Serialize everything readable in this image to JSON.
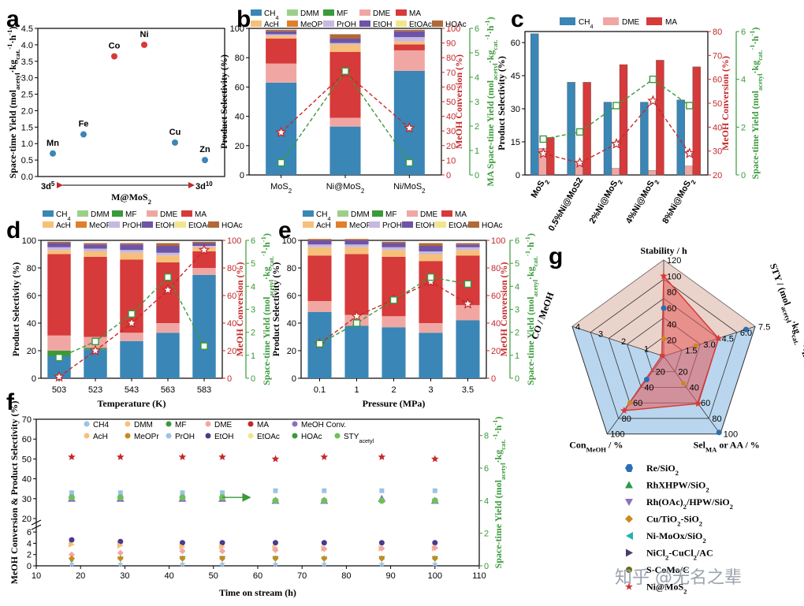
{
  "colors": {
    "CH4": "#3a86b6",
    "DMM": "#9cd08a",
    "MF": "#3a9a3a",
    "DME": "#f0a7a3",
    "MA": "#d63a3a",
    "AcH": "#f6c07a",
    "MeOPr": "#e07f2a",
    "PrOH": "#c7b8e2",
    "EtOH": "#6e54a6",
    "EtOAc": "#f2e68a",
    "HOAc": "#b06a3a",
    "conv": "#c4282a",
    "sty": "#3a9a3a"
  },
  "watermark": "知乎 @无名之辈",
  "chart_data": [
    {
      "id": "a",
      "panel_label": "a",
      "type": "scatter",
      "ylabel": "Space-time Yield (mol_acetyl·kg_cat.^-1·h^-1)",
      "xlabel": "M@MoS2",
      "x_left": "3d5",
      "x_right": "3d10",
      "ylim": [
        0,
        4.5
      ],
      "yticks": [
        "0.0",
        "0.5",
        "1.0",
        "1.5",
        "2.0",
        "2.5",
        "3.0",
        "3.5",
        "4.0",
        "4.5"
      ],
      "points": [
        {
          "label": "Mn",
          "y": 0.7,
          "color": "#3a86b6"
        },
        {
          "label": "Fe",
          "y": 1.28,
          "color": "#3a86b6"
        },
        {
          "label": "Co",
          "y": 3.65,
          "color": "#d63a3a"
        },
        {
          "label": "Ni",
          "y": 4.0,
          "color": "#d63a3a"
        },
        {
          "label": "Cu",
          "y": 1.03,
          "color": "#3a86b6"
        },
        {
          "label": "Zn",
          "y": 0.5,
          "color": "#3a86b6"
        }
      ]
    },
    {
      "id": "b",
      "panel_label": "b",
      "type": "bar",
      "ylabel": "Product Selectivity (%)",
      "y2label": "MeOH Conversion (%)",
      "y3label": "MA Space-time Yield (mol_acetyl·kg_cat.^-1·h^-1)",
      "categories": [
        "MoS2",
        "Ni@MoS2",
        "Ni/MoS2"
      ],
      "legend": [
        "CH4",
        "DMM",
        "MF",
        "DME",
        "MA",
        "AcH",
        "MeOPr",
        "PrOH",
        "EtOH",
        "EtOAc",
        "HOAc"
      ],
      "stacks": {
        "CH4": [
          63,
          33,
          71
        ],
        "DME": [
          13,
          6,
          14
        ],
        "MA": [
          17,
          45,
          4
        ],
        "AcH": [
          2,
          5,
          2
        ],
        "PrOH": [
          1,
          1,
          3
        ],
        "EtOH": [
          2,
          3,
          4
        ],
        "HOAc": [
          1,
          3,
          1
        ]
      },
      "conversion": [
        29,
        70,
        32
      ],
      "sty": [
        0.5,
        4.25,
        0.5
      ],
      "ylim": [
        0,
        100
      ],
      "yticks": [
        "0",
        "20",
        "40",
        "60",
        "80",
        "100"
      ],
      "y2ticks": [
        "0",
        "10",
        "20",
        "30",
        "40",
        "50",
        "60",
        "70",
        "80",
        "90",
        "100"
      ],
      "y3ticks": [
        "0",
        "1",
        "2",
        "3",
        "4",
        "5",
        "6"
      ]
    },
    {
      "id": "c",
      "panel_label": "c",
      "type": "bar",
      "ylabel": "Product Selectivity (%)",
      "y2label": "MeOH Conversion (%)",
      "y3label": "Space-time Yield (mol_acetyl·kg_cat.^-1·h^-1)",
      "categories": [
        "MoS2",
        "0.5%Ni@MoS2",
        "2%Ni@MoS2",
        "4%Ni@MoS2",
        "8%Ni@MoS2"
      ],
      "legend": [
        "CH4",
        "DME",
        "MA"
      ],
      "series": [
        {
          "name": "CH4",
          "values": [
            64,
            42,
            33,
            33,
            34
          ]
        },
        {
          "name": "DME",
          "values": [
            12,
            5,
            3,
            2,
            4
          ]
        },
        {
          "name": "MA",
          "values": [
            17,
            42,
            50,
            52,
            49
          ]
        }
      ],
      "conversion": [
        29,
        25,
        33,
        51,
        29
      ],
      "sty": [
        1.5,
        1.8,
        2.9,
        4.0,
        2.9
      ],
      "ylim": [
        0,
        65
      ],
      "yticks": [
        "0",
        "15",
        "30",
        "45",
        "60"
      ],
      "y2ticks": [
        "20",
        "30",
        "40",
        "50",
        "60",
        "70",
        "80"
      ],
      "y3ticks": [
        "0",
        "2",
        "4",
        "6"
      ]
    },
    {
      "id": "d",
      "panel_label": "d",
      "type": "bar",
      "xlabel": "Temperature (K)",
      "ylabel": "Product Selectivity (%)",
      "y2label": "MeOH Conversion (%)",
      "y3label": "Space-time Yield (mol_acetyl·kg_cat.^-1·h^-1)",
      "categories": [
        "503",
        "523",
        "543",
        "563",
        "583"
      ],
      "legend": [
        "CH4",
        "DMM",
        "MF",
        "DME",
        "MA",
        "AcH",
        "MeOPr",
        "PrOH",
        "EtOH",
        "EtOAc",
        "HOAc"
      ],
      "stacks": {
        "CH4": [
          16,
          21,
          27,
          33,
          75
        ],
        "MF": [
          4,
          1,
          0,
          0,
          0
        ],
        "DME": [
          11,
          8,
          6,
          7,
          5
        ],
        "MA": [
          59,
          58,
          53,
          44,
          12
        ],
        "AcH": [
          3,
          4,
          5,
          5,
          3
        ],
        "PrOH": [
          2,
          2,
          2,
          2,
          1
        ],
        "EtOH": [
          3,
          3,
          4,
          5,
          2
        ],
        "HOAc": [
          1,
          1,
          1,
          2,
          1
        ]
      },
      "conversion": [
        1,
        20,
        40,
        64,
        93
      ],
      "sty": [
        0.9,
        1.6,
        2.8,
        4.4,
        1.4
      ],
      "ylim": [
        0,
        100
      ],
      "yticks": [
        "0",
        "20",
        "40",
        "60",
        "80",
        "100"
      ],
      "y2ticks": [
        "0",
        "20",
        "40",
        "60",
        "80",
        "100"
      ],
      "y3ticks": [
        "0",
        "1",
        "2",
        "3",
        "4",
        "5",
        "6"
      ]
    },
    {
      "id": "e",
      "panel_label": "e",
      "type": "bar",
      "xlabel": "Pressure (MPa)",
      "ylabel": "Product Selectivity (%)",
      "y2label": "MeOH Conversion (%)",
      "y3label": "Space-time Yield (mol_acetyl·kg_cat.^-1·h^-1)",
      "categories": [
        "0.1",
        "1",
        "2",
        "3",
        "3.5"
      ],
      "legend": [
        "CH4",
        "DMM",
        "MF",
        "DME",
        "MA",
        "AcH",
        "MeOPr",
        "PrOH",
        "EtOH",
        "EtOAc",
        "HOAc"
      ],
      "stacks": {
        "CH4": [
          48,
          38,
          37,
          33,
          42
        ],
        "DME": [
          8,
          8,
          8,
          7,
          11
        ],
        "MA": [
          33,
          44,
          43,
          45,
          36
        ],
        "AcH": [
          6,
          5,
          5,
          5,
          4
        ],
        "PrOH": [
          2,
          2,
          2,
          2,
          2
        ],
        "EtOH": [
          3,
          3,
          3,
          4,
          2
        ],
        "HOAc": [
          1,
          1,
          1,
          2,
          1
        ]
      },
      "conversion": [
        25,
        45,
        57,
        70,
        54
      ],
      "sty": [
        1.5,
        2.4,
        3.4,
        4.4,
        4.1
      ],
      "ylim": [
        0,
        100
      ],
      "yticks": [
        "0",
        "20",
        "40",
        "60",
        "80",
        "100"
      ],
      "y2ticks": [
        "0",
        "20",
        "40",
        "60",
        "80",
        "100"
      ],
      "y3ticks": [
        "0",
        "1",
        "2",
        "3",
        "4",
        "5",
        "6"
      ]
    },
    {
      "id": "f",
      "panel_label": "f",
      "type": "scatter",
      "xlabel": "Time on stream (h)",
      "ylabel": "MeOH Conversion & Product Selectivity (%)",
      "y2label": "Space-time Yield (mol_acetyl·kg_cat.^-1·h^-1)",
      "x": [
        18,
        29,
        43,
        52,
        64,
        75,
        88,
        100
      ],
      "xlim": [
        10,
        110
      ],
      "xticks": [
        "10",
        "20",
        "30",
        "40",
        "50",
        "60",
        "70",
        "80",
        "90",
        "100",
        "110"
      ],
      "yticks": [
        "0",
        "2",
        "4",
        "6",
        "20",
        "30",
        "40",
        "50",
        "60",
        "70"
      ],
      "y2ticks": [
        "0",
        "2",
        "4",
        "6",
        "8"
      ],
      "legend": [
        "CH4",
        "DMM",
        "MF",
        "DME",
        "MA",
        "MeOH Conv.",
        "AcH",
        "MeOPr",
        "PrOH",
        "EtOH",
        "EtOAc",
        "HOAc",
        "STY_acetyl"
      ],
      "series": [
        {
          "name": "CH4",
          "values": [
            33,
            33,
            33,
            33,
            34,
            34,
            34,
            34
          ]
        },
        {
          "name": "MA",
          "values": [
            51,
            51,
            51,
            51,
            50,
            51,
            51,
            50
          ]
        },
        {
          "name": "MeOH Conv.",
          "values": [
            30,
            30,
            30,
            30,
            29,
            29,
            30,
            29
          ]
        },
        {
          "name": "STY_acetyl",
          "values": [
            4.2,
            4.2,
            4.2,
            4.2,
            4.0,
            4.0,
            4.0,
            4.0
          ]
        },
        {
          "name": "EtOH",
          "values": [
            4.6,
            4.3,
            4.1,
            4.1,
            4.1,
            4.1,
            4.1,
            4.1
          ]
        },
        {
          "name": "AcH",
          "values": [
            3.8,
            3.6,
            3.4,
            3.4,
            3.2,
            3.1,
            3.1,
            3.1
          ]
        },
        {
          "name": "DME",
          "values": [
            2.0,
            2.3,
            2.6,
            2.6,
            2.8,
            3.0,
            3.1,
            3.2
          ]
        },
        {
          "name": "MF",
          "values": [
            1.0,
            1.2,
            1.3,
            1.3,
            1.3,
            1.2,
            1.3,
            1.3
          ]
        },
        {
          "name": "MeOPr",
          "values": [
            1.3,
            1.3,
            1.3,
            1.3,
            1.3,
            1.3,
            1.3,
            1.3
          ]
        },
        {
          "name": "PrOH",
          "values": [
            0.3,
            0.3,
            0.3,
            0.3,
            0.3,
            0.3,
            0.3,
            0.3
          ]
        }
      ]
    },
    {
      "id": "g",
      "panel_label": "g",
      "type": "radar",
      "axes": [
        "Stability / h",
        "STY / (mol_acetyl·kg_cat.^-1·h^-1)",
        "Sel_MA or AA / %",
        "Con_MeOH / %",
        "CO / MeOH"
      ],
      "axis_ticks": [
        [
          "20",
          "40",
          "60",
          "80",
          "100",
          "120"
        ],
        [
          "1.5",
          "3.0",
          "4.5",
          "6.0",
          "7.5"
        ],
        [
          "20",
          "40",
          "60",
          "80",
          "100"
        ],
        [
          "20",
          "40",
          "60",
          "80",
          "100"
        ],
        [
          "1",
          "2",
          "3",
          "4"
        ]
      ],
      "legend": [
        "Re/SiO2",
        "RhXHPW/SiO2",
        "Rh(OAc)2/HPW/SiO2",
        "Cu/TiO2-SiO2",
        "Ni-MoOx/SiO2",
        "NiCl2-CuCl2/AC",
        "S-CoMo/C",
        "Ni@MoS2"
      ],
      "ni_mos2": [
        100,
        4.5,
        61,
        70,
        0
      ]
    }
  ]
}
